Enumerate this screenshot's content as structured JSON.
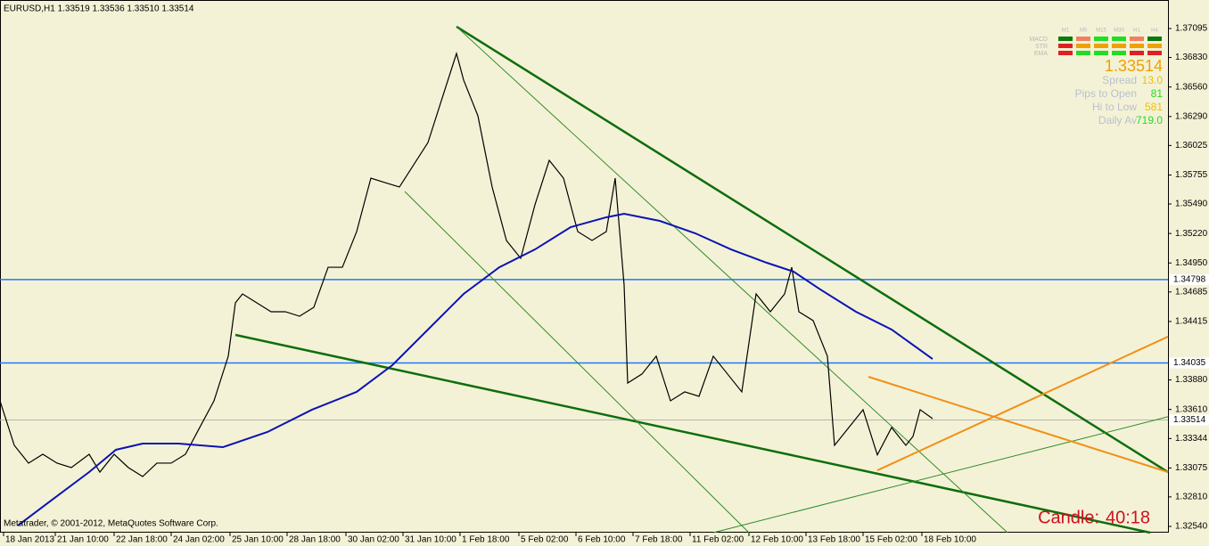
{
  "chart_data": {
    "type": "line",
    "header": "EURUSD,H1  1.33519 1.33536 1.33510 1.33514",
    "footer": "Metatrader, © 2001-2012, MetaQuotes Software Corp.",
    "candle_label": "Candle:",
    "candle_time": "40:18",
    "xlim": [
      0,
      655
    ],
    "ylim": [
      1.32483,
      1.37356
    ],
    "xticks": [
      {
        "value": 2,
        "label": "18 Jan 2013"
      },
      {
        "value": 31,
        "label": "21 Jan 10:00"
      },
      {
        "value": 64,
        "label": "22 Jan 18:00"
      },
      {
        "value": 96,
        "label": "24 Jan 02:00"
      },
      {
        "value": 129,
        "label": "25 Jan 10:00"
      },
      {
        "value": 161,
        "label": "28 Jan 18:00"
      },
      {
        "value": 194,
        "label": "30 Jan 02:00"
      },
      {
        "value": 226,
        "label": "31 Jan 10:00"
      },
      {
        "value": 258,
        "label": "1 Feb 18:00"
      },
      {
        "value": 291,
        "label": "5 Feb 02:00"
      },
      {
        "value": 323,
        "label": "6 Feb 10:00"
      },
      {
        "value": 355,
        "label": "7 Feb 18:00"
      },
      {
        "value": 387,
        "label": "11 Feb 02:00"
      },
      {
        "value": 420,
        "label": "12 Feb 10:00"
      },
      {
        "value": 452,
        "label": "13 Feb 18:00"
      },
      {
        "value": 484,
        "label": "15 Feb 02:00"
      },
      {
        "value": 517,
        "label": "18 Feb 10:00"
      }
    ],
    "yticks": [
      {
        "value": 1.37095,
        "label": "1.37095"
      },
      {
        "value": 1.3683,
        "label": "1.36830"
      },
      {
        "value": 1.3656,
        "label": "1.36560"
      },
      {
        "value": 1.3629,
        "label": "1.36290"
      },
      {
        "value": 1.36025,
        "label": "1.36025"
      },
      {
        "value": 1.35755,
        "label": "1.35755"
      },
      {
        "value": 1.3549,
        "label": "1.35490"
      },
      {
        "value": 1.3522,
        "label": "1.35220"
      },
      {
        "value": 1.3495,
        "label": "1.34950"
      },
      {
        "value": 1.34685,
        "label": "1.34685"
      },
      {
        "value": 1.34415,
        "label": "1.34415"
      },
      {
        "value": 1.3388,
        "label": "1.33880"
      },
      {
        "value": 1.3361,
        "label": "1.33610"
      },
      {
        "value": 1.33344,
        "label": "1.33344"
      },
      {
        "value": 1.33075,
        "label": "1.33075"
      },
      {
        "value": 1.3281,
        "label": "1.32810"
      },
      {
        "value": 1.3254,
        "label": "1.32540"
      }
    ],
    "price": {
      "color": "#000000",
      "x": [
        0,
        8,
        16,
        24,
        32,
        40,
        50,
        56,
        64,
        72,
        80,
        88,
        96,
        104,
        112,
        120,
        128,
        132,
        136,
        144,
        152,
        160,
        168,
        176,
        184,
        192,
        200,
        208,
        216,
        224,
        232,
        240,
        248,
        256,
        260,
        268,
        276,
        284,
        292,
        300,
        308,
        316,
        324,
        332,
        340,
        345,
        350,
        352,
        360,
        368,
        376,
        384,
        392,
        400,
        408,
        416,
        424,
        432,
        440,
        444,
        448,
        456,
        464,
        468,
        476,
        484,
        492,
        500,
        508,
        512,
        516,
        523
      ],
      "values": [
        1.33689,
        1.33282,
        1.33119,
        1.332,
        1.33119,
        1.33078,
        1.332,
        1.33037,
        1.332,
        1.33078,
        1.32996,
        1.33119,
        1.33119,
        1.332,
        1.33445,
        1.33689,
        1.34097,
        1.34585,
        1.34667,
        1.34585,
        1.34504,
        1.34504,
        1.34463,
        1.34545,
        1.34911,
        1.34911,
        1.35237,
        1.35726,
        1.35685,
        1.35645,
        1.35849,
        1.36052,
        1.3646,
        1.36867,
        1.36623,
        1.36297,
        1.35645,
        1.35156,
        1.34993,
        1.35482,
        1.35889,
        1.35726,
        1.35237,
        1.35156,
        1.35237,
        1.35726,
        1.34748,
        1.33852,
        1.33934,
        1.34097,
        1.33689,
        1.33771,
        1.3373,
        1.34097,
        1.33934,
        1.33771,
        1.34667,
        1.34504,
        1.34667,
        1.34911,
        1.34504,
        1.34423,
        1.34097,
        1.33282,
        1.33445,
        1.33608,
        1.33194,
        1.33445,
        1.33282,
        1.33363,
        1.33608,
        1.33526
      ]
    },
    "moving_average": {
      "color": "#0a14b4",
      "x": [
        10,
        30,
        50,
        65,
        80,
        100,
        125,
        150,
        175,
        200,
        220,
        240,
        260,
        280,
        300,
        320,
        340,
        350,
        370,
        390,
        410,
        430,
        445,
        460,
        480,
        500,
        523
      ],
      "values": [
        1.32548,
        1.32793,
        1.33037,
        1.33241,
        1.33298,
        1.33298,
        1.33265,
        1.33404,
        1.33608,
        1.33771,
        1.34015,
        1.34341,
        1.34667,
        1.34911,
        1.35074,
        1.35278,
        1.35368,
        1.354,
        1.35335,
        1.35221,
        1.35074,
        1.34952,
        1.34871,
        1.34708,
        1.34504,
        1.34341,
        1.34072
      ]
    },
    "levels": [
      {
        "value": 1.34798,
        "color": "#1e78ff"
      },
      {
        "value": 1.34035,
        "color": "#1e78ff"
      }
    ],
    "current_price": {
      "value": 1.33514,
      "color": "#b4b4b4"
    },
    "trendlines": [
      {
        "color": "#0e6e0e",
        "width": 2.5,
        "x": [
          256,
          655
        ],
        "values": [
          1.37112,
          1.33037
        ]
      },
      {
        "color": "#0e6e0e",
        "width": 2.5,
        "x": [
          132,
          645
        ],
        "values": [
          1.34292,
          1.32483
        ]
      },
      {
        "color": "#2c8c2c",
        "width": 1,
        "x": [
          256,
          565
        ],
        "values": [
          1.37112,
          1.32483
        ]
      },
      {
        "color": "#2c8c2c",
        "width": 1,
        "x": [
          227,
          420
        ],
        "values": [
          1.35604,
          1.32483
        ]
      },
      {
        "color": "#2c8c2c",
        "width": 1,
        "x": [
          400,
          655
        ],
        "values": [
          1.32483,
          1.33543
        ]
      },
      {
        "color": "#f09018",
        "width": 2,
        "x": [
          487,
          655
        ],
        "values": [
          1.33909,
          1.33037
        ]
      },
      {
        "color": "#f09018",
        "width": 2,
        "x": [
          492,
          655
        ],
        "values": [
          1.33053,
          1.34276
        ]
      }
    ],
    "indicator": {
      "timeframes": [
        "M1",
        "M5",
        "M15",
        "M30",
        "H1",
        "H4"
      ],
      "signals": [
        "MACD",
        "STR",
        "EMA"
      ],
      "price": "1.33514",
      "rows": [
        {
          "label": "Spread",
          "value": "13.0"
        },
        {
          "label": "Pips to Open",
          "value": "81"
        },
        {
          "label": "Hi to Low",
          "value": "581"
        },
        {
          "label": "Daily Av",
          "value": "719.0"
        }
      ]
    }
  }
}
